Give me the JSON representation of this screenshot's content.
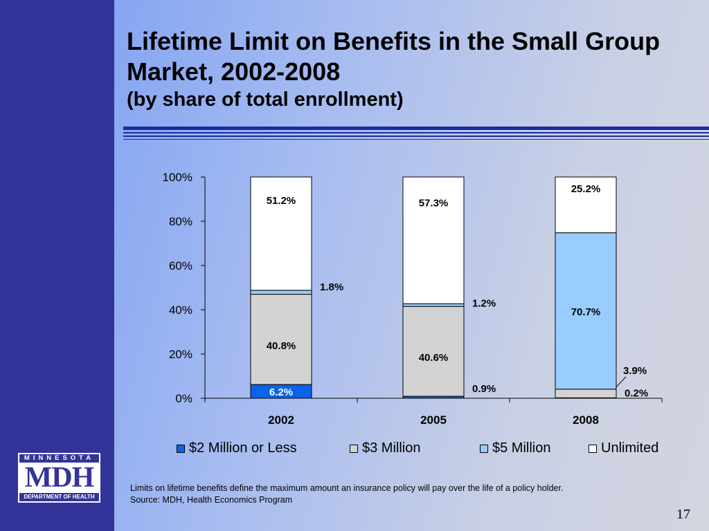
{
  "slide": {
    "title": "Lifetime Limit on Benefits in the Small Group Market, 2002-2008",
    "subtitle": "(by share of total enrollment)",
    "footnote_line1": "Limits on lifetime benefits define the maximum amount an insurance policy will pay over the life of a policy holder.",
    "footnote_line2": "Source:  MDH, Health Economics Program",
    "page_number": "17",
    "logo": {
      "top": "MINNESOTA",
      "middle": "MDH",
      "bottom": "DEPARTMENT OF HEALTH"
    }
  },
  "colors": {
    "sidebar": "#33349a",
    "rule": "#1b2c9c",
    "series": [
      "#0b63e9",
      "#d3d3d3",
      "#99ccff",
      "#ffffff"
    ]
  },
  "chart_data": {
    "type": "bar",
    "stacked": true,
    "categories": [
      "2002",
      "2005",
      "2008"
    ],
    "series": [
      {
        "name": "$2 Million or Less",
        "values": [
          6.2,
          0.9,
          0.2
        ],
        "labels": [
          "6.2%",
          "0.9%",
          "0.2%"
        ]
      },
      {
        "name": "$3 Million",
        "values": [
          40.8,
          40.6,
          3.9
        ],
        "labels": [
          "40.8%",
          "40.6%",
          "3.9%"
        ]
      },
      {
        "name": "$5 Million",
        "values": [
          1.8,
          1.2,
          70.7
        ],
        "labels": [
          "1.8%",
          "1.2%",
          "70.7%"
        ]
      },
      {
        "name": "Unlimited",
        "values": [
          51.2,
          57.3,
          25.2
        ],
        "labels": [
          "51.2%",
          "57.3%",
          "25.2%"
        ]
      }
    ],
    "ylim": [
      0,
      100
    ],
    "yticks": [
      "0%",
      "20%",
      "40%",
      "60%",
      "80%",
      "100%"
    ],
    "legend_position": "bottom",
    "grid": false
  }
}
